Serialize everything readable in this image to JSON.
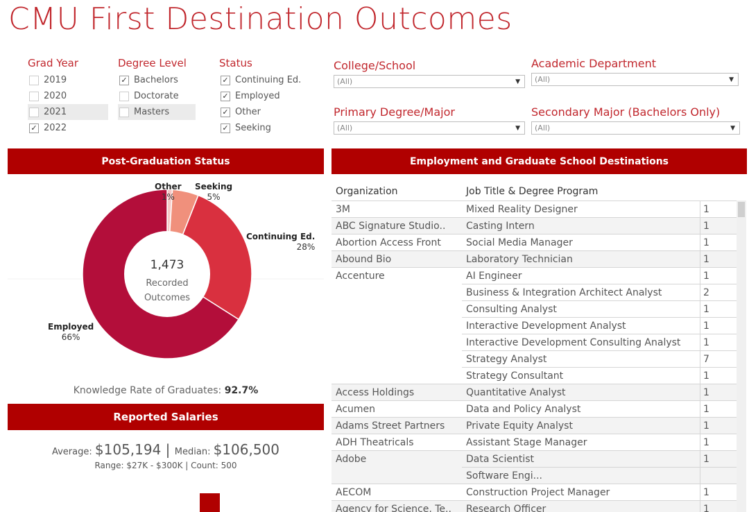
{
  "page": {
    "title": "CMU First Destination Outcomes"
  },
  "filters": {
    "grad_year": {
      "label": "Grad Year",
      "options": [
        {
          "label": "2019",
          "checked": false
        },
        {
          "label": "2020",
          "checked": false
        },
        {
          "label": "2021",
          "checked": false
        },
        {
          "label": "2022",
          "checked": true
        }
      ]
    },
    "degree_level": {
      "label": "Degree Level",
      "options": [
        {
          "label": "Bachelors",
          "checked": true
        },
        {
          "label": "Doctorate",
          "checked": false
        },
        {
          "label": "Masters",
          "checked": false
        }
      ]
    },
    "status": {
      "label": "Status",
      "options": [
        {
          "label": "Continuing Ed.",
          "checked": true
        },
        {
          "label": "Employed",
          "checked": true
        },
        {
          "label": "Other",
          "checked": true
        },
        {
          "label": "Seeking",
          "checked": true
        }
      ]
    },
    "college": {
      "label": "College/School",
      "value": "(All)"
    },
    "academic_dept": {
      "label": "Academic Department",
      "value": "(All)"
    },
    "primary_major": {
      "label": "Primary Degree/Major",
      "value": "(All)"
    },
    "secondary_major": {
      "label": "Secondary Major (Bachelors Only)",
      "value": "(All)"
    }
  },
  "status_panel": {
    "header": "Post-Graduation Status",
    "total": "1,473",
    "center_line1": "Recorded",
    "center_line2": "Outcomes",
    "knowledge_label": "Knowledge Rate of Graduates: ",
    "knowledge_value": "92.7%"
  },
  "chart_data": {
    "type": "pie",
    "donut": true,
    "slices": [
      {
        "name": "Employed",
        "label": "Employed",
        "pct_label": "66%",
        "value": 66,
        "color": "#b30e3a"
      },
      {
        "name": "Continuing Ed.",
        "label": "Continuing Ed.",
        "pct_label": "28%",
        "value": 28,
        "color": "#d9303f"
      },
      {
        "name": "Seeking",
        "label": "Seeking",
        "pct_label": "5%",
        "value": 5,
        "color": "#f0907c"
      },
      {
        "name": "Other",
        "label": "Other",
        "pct_label": "1%",
        "value": 1,
        "color": "#f6c8c6"
      }
    ]
  },
  "salaries": {
    "header": "Reported Salaries",
    "avg_label": "Average: ",
    "avg_value": "$105,194",
    "sep": " | ",
    "median_label": "Median: ",
    "median_value": "$106,500",
    "range_label": "Range: ",
    "range_value": "$27K - $300K",
    "count_label": " | Count: ",
    "count_value": "500"
  },
  "destinations": {
    "header": "Employment and Graduate School Destinations",
    "col_org": "Organization",
    "col_job": "Job Title & Degree Program",
    "rows": [
      {
        "org": "3M",
        "job": "Mixed Reality Designer",
        "count": "1",
        "alt": false,
        "start": true
      },
      {
        "org": "ABC Signature Studio..",
        "job": "Casting Intern",
        "count": "1",
        "alt": true,
        "start": true
      },
      {
        "org": "Abortion Access Front",
        "job": "Social Media Manager",
        "count": "1",
        "alt": false,
        "start": true
      },
      {
        "org": "Abound Bio",
        "job": "Laboratory Technician",
        "count": "1",
        "alt": true,
        "start": true
      },
      {
        "org": "Accenture",
        "job": "AI Engineer",
        "count": "1",
        "alt": false,
        "start": true
      },
      {
        "org": "",
        "job": "Business & Integration Architect Analyst",
        "count": "2",
        "alt": false,
        "start": false
      },
      {
        "org": "",
        "job": "Consulting Analyst",
        "count": "1",
        "alt": false,
        "start": false
      },
      {
        "org": "",
        "job": "Interactive Development Analyst",
        "count": "1",
        "alt": false,
        "start": false
      },
      {
        "org": "",
        "job": "Interactive Development Consulting Analyst",
        "count": "1",
        "alt": false,
        "start": false
      },
      {
        "org": "",
        "job": "Strategy Analyst",
        "count": "7",
        "alt": false,
        "start": false
      },
      {
        "org": "",
        "job": "Strategy Consultant",
        "count": "1",
        "alt": false,
        "start": false
      },
      {
        "org": "Access Holdings",
        "job": "Quantitative Analyst",
        "count": "1",
        "alt": true,
        "start": true
      },
      {
        "org": "Acumen",
        "job": "Data and Policy Analyst",
        "count": "1",
        "alt": false,
        "start": true
      },
      {
        "org": "Adams Street Partners",
        "job": "Private Equity Analyst",
        "count": "1",
        "alt": true,
        "start": true
      },
      {
        "org": "ADH Theatricals",
        "job": "Assistant Stage Manager",
        "count": "1",
        "alt": false,
        "start": true
      },
      {
        "org": "Adobe",
        "job": "Data Scientist",
        "count": "1",
        "alt": true,
        "start": true
      },
      {
        "org": "",
        "job": "Software Engi...",
        "count": "",
        "alt": true,
        "start": false
      },
      {
        "org": "AECOM",
        "job": "Construction Project Manager",
        "count": "1",
        "alt": false,
        "start": true
      },
      {
        "org": "Agency for Science, Te..",
        "job": "Research Officer",
        "count": "1",
        "alt": true,
        "start": true
      }
    ]
  }
}
